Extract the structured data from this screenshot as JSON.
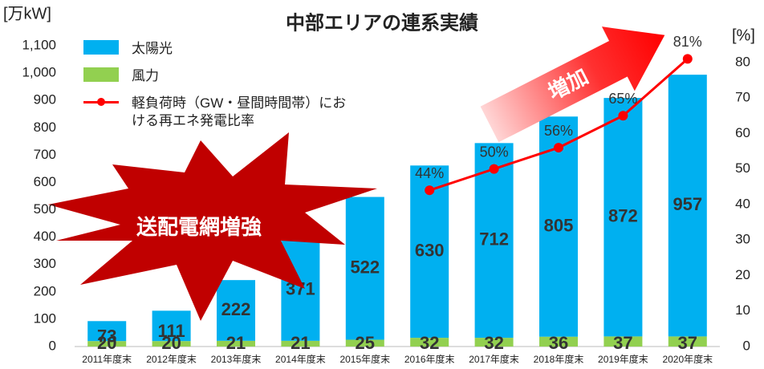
{
  "chart_data": {
    "type": "bar",
    "title": "中部エリアの連系実績",
    "y_label": "[万kW]",
    "y2_label": "[%]",
    "categories": [
      "2011年度末",
      "2012年度末",
      "2013年度末",
      "2014年度末",
      "2015年度末",
      "2016年度末",
      "2017年度末",
      "2018年度末",
      "2019年度末",
      "2020年度末"
    ],
    "series": [
      {
        "name": "太陽光",
        "color": "#00b0f0",
        "values": [
          73,
          111,
          222,
          371,
          522,
          630,
          712,
          805,
          872,
          957
        ]
      },
      {
        "name": "風力",
        "color": "#92d050",
        "values": [
          20,
          20,
          21,
          21,
          25,
          32,
          32,
          36,
          37,
          37
        ]
      },
      {
        "name": "軽負荷時（GW・昼間時間帯）における再エネ発電比率",
        "color": "#ff0000",
        "axis": "y2",
        "type": "line",
        "values": [
          null,
          null,
          null,
          null,
          null,
          44,
          50,
          56,
          65,
          81
        ],
        "value_labels": [
          null,
          null,
          null,
          null,
          null,
          "44%",
          "50%",
          "56%",
          "65%",
          "81%"
        ]
      }
    ],
    "ylim": [
      0,
      1100
    ],
    "yticks": [
      0,
      100,
      200,
      300,
      400,
      500,
      600,
      700,
      800,
      900,
      {
        "value": 1000,
        "label": "1,000"
      },
      {
        "value": 1100,
        "label": "1,100"
      }
    ],
    "y2lim": [
      0,
      84.7
    ],
    "y2ticks": [
      0,
      10,
      20,
      30,
      40,
      50,
      60,
      70,
      80
    ],
    "stacked": true,
    "grid": false,
    "annotations": [
      "送配電網増強",
      "増加"
    ]
  }
}
